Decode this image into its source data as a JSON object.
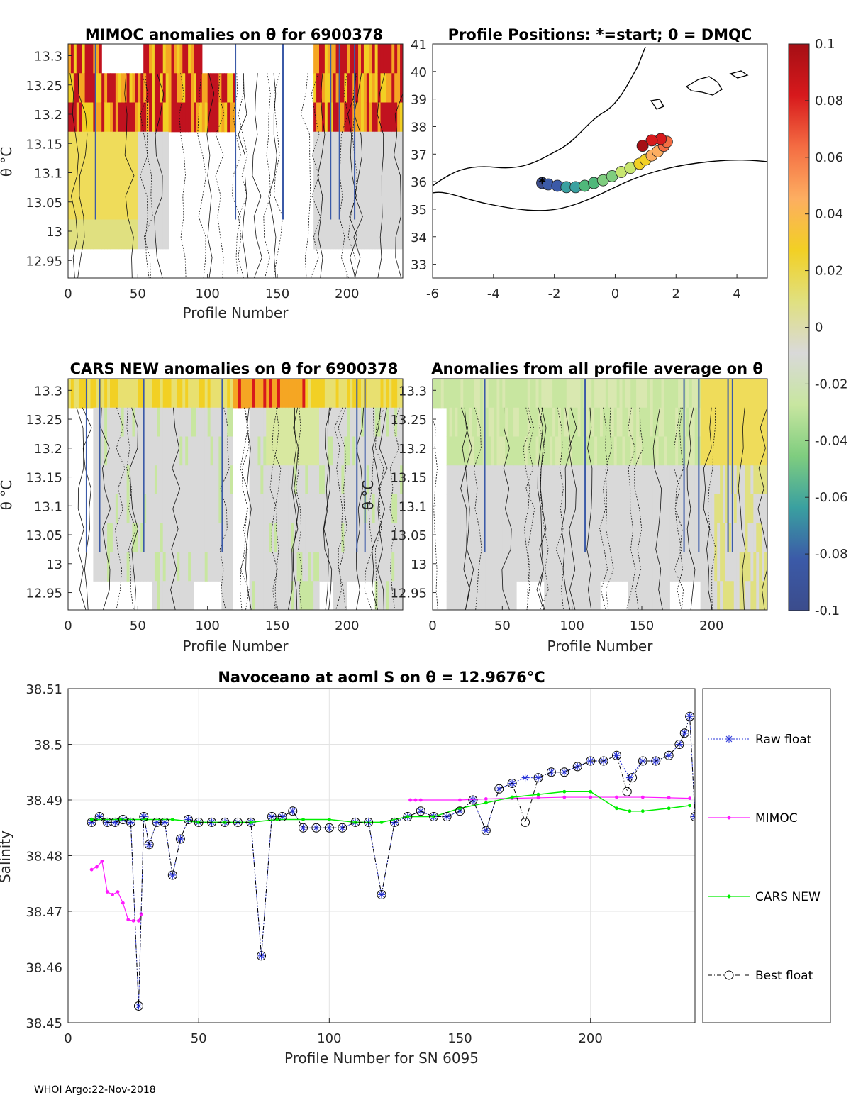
{
  "footer": "WHOI Argo:22-Nov-2018",
  "colorbar": {
    "ticks": [
      "0.1",
      "0.08",
      "0.06",
      "0.04",
      "0.02",
      "0",
      "-0.02",
      "-0.04",
      "-0.06",
      "-0.08",
      "-0.1"
    ],
    "stops": [
      "#a50f15",
      "#d7191c",
      "#f46d43",
      "#fdae61",
      "#f2d024",
      "#e0e080",
      "#d9d9d9",
      "#c8e6a0",
      "#7fcd7f",
      "#3aa0a0",
      "#3b5aa8",
      "#3b4c8c"
    ]
  },
  "chart_data": [
    {
      "id": "mimoc",
      "type": "heatmap",
      "title": "MIMOC anomalies on θ  for 6900378",
      "xlabel": "Profile Number",
      "ylabel": "θ °C",
      "xlim": [
        0,
        240
      ],
      "ylim": [
        12.92,
        13.32
      ],
      "xticks": [
        "0",
        "50",
        "100",
        "150",
        "200"
      ],
      "yticks": [
        "13.3",
        "13.25",
        "13.2",
        "13.15",
        "13.1",
        "13.05",
        "13",
        "12.95"
      ]
    },
    {
      "id": "positions",
      "type": "scatter",
      "title": "Profile Positions: *=start; 0 = DMQC",
      "xlim": [
        -6,
        5
      ],
      "ylim": [
        32.5,
        41
      ],
      "xticks": [
        "-6",
        "-4",
        "-2",
        "0",
        "2",
        "4"
      ],
      "yticks": [
        "41",
        "40",
        "39",
        "38",
        "37",
        "36",
        "35",
        "34",
        "33"
      ],
      "track_lon": [
        -2.4,
        -2.2,
        -1.9,
        -1.6,
        -1.3,
        -1.0,
        -0.7,
        -0.4,
        -0.1,
        0.2,
        0.5,
        0.8,
        1.0,
        1.2,
        1.4,
        1.6,
        1.7,
        1.5,
        1.2,
        0.9
      ],
      "track_lat": [
        35.95,
        35.9,
        35.85,
        35.8,
        35.8,
        35.85,
        35.95,
        36.05,
        36.2,
        36.35,
        36.5,
        36.65,
        36.8,
        36.95,
        37.1,
        37.3,
        37.45,
        37.55,
        37.5,
        37.3
      ]
    },
    {
      "id": "cars",
      "type": "heatmap",
      "title": "CARS NEW anomalies on θ for 6900378",
      "xlabel": "Profile Number",
      "ylabel": "θ °C",
      "xlim": [
        0,
        240
      ],
      "ylim": [
        12.92,
        13.32
      ],
      "xticks": [
        "0",
        "50",
        "100",
        "150",
        "200"
      ],
      "yticks": [
        "13.3",
        "13.25",
        "13.2",
        "13.15",
        "13.1",
        "13.05",
        "13",
        "12.95"
      ]
    },
    {
      "id": "allavg",
      "type": "heatmap",
      "title": "Anomalies from all profile average on θ",
      "xlabel": "Profile Number",
      "ylabel": "θ °C",
      "xlim": [
        0,
        240
      ],
      "ylim": [
        12.92,
        13.32
      ],
      "xticks": [
        "0",
        "50",
        "100",
        "150",
        "200"
      ],
      "yticks": [
        "13.3",
        "13.25",
        "13.2",
        "13.15",
        "13.1",
        "13.05",
        "13",
        "12.95"
      ]
    },
    {
      "id": "salinity",
      "type": "line",
      "title": "Navoceano at aoml S on θ = 12.9676°C",
      "xlabel": "Profile Number for SN 6095",
      "ylabel": "Salinity",
      "xlim": [
        0,
        240
      ],
      "ylim": [
        38.45,
        38.51
      ],
      "xticks": [
        "0",
        "50",
        "100",
        "150",
        "200"
      ],
      "yticks": [
        "38.51",
        "38.5",
        "38.49",
        "38.48",
        "38.47",
        "38.46",
        "38.45"
      ],
      "legend": [
        "Raw float",
        "MIMOC",
        "CARS NEW",
        "Best float"
      ],
      "series": [
        {
          "name": "Raw float",
          "color": "#2a35d8",
          "x": [
            9,
            12,
            15,
            18,
            21,
            24,
            27,
            29,
            31,
            34,
            37,
            40,
            43,
            46,
            50,
            55,
            60,
            65,
            70,
            74,
            78,
            82,
            86,
            90,
            95,
            100,
            105,
            110,
            115,
            120,
            125,
            130,
            135,
            140,
            145,
            150,
            155,
            160,
            165,
            170,
            175,
            180,
            185,
            190,
            195,
            200,
            205,
            210,
            215,
            220,
            225,
            230,
            234,
            236,
            238,
            240
          ],
          "y": [
            38.486,
            38.487,
            38.486,
            38.486,
            38.4865,
            38.486,
            38.453,
            38.487,
            38.482,
            38.486,
            38.486,
            38.4765,
            38.483,
            38.4865,
            38.486,
            38.486,
            38.486,
            38.486,
            38.486,
            38.462,
            38.487,
            38.487,
            38.488,
            38.485,
            38.485,
            38.485,
            38.485,
            38.486,
            38.486,
            38.473,
            38.486,
            38.487,
            38.488,
            38.487,
            38.487,
            38.488,
            38.49,
            38.4845,
            38.492,
            38.493,
            38.494,
            38.494,
            38.495,
            38.495,
            38.496,
            38.497,
            38.497,
            38.498,
            38.494,
            38.497,
            38.497,
            38.498,
            38.5,
            38.502,
            38.505,
            38.487
          ]
        },
        {
          "name": "MIMOC",
          "color": "#ff1aff",
          "x": [
            9,
            11,
            13,
            15,
            17,
            19,
            21,
            23,
            25,
            27,
            28,
            131,
            133,
            135,
            150,
            160,
            170,
            180,
            190,
            200,
            210,
            220,
            230,
            238
          ],
          "y": [
            38.4775,
            38.478,
            38.479,
            38.4735,
            38.473,
            38.4735,
            38.4715,
            38.4685,
            38.4683,
            38.4683,
            38.4695,
            38.49,
            38.49,
            38.49,
            38.49,
            38.4902,
            38.4903,
            38.4904,
            38.4905,
            38.4905,
            38.4905,
            38.4905,
            38.4904,
            38.4903
          ]
        },
        {
          "name": "CARS NEW",
          "color": "#00ee00",
          "x": [
            9,
            20,
            30,
            40,
            50,
            60,
            70,
            80,
            90,
            100,
            110,
            120,
            130,
            140,
            150,
            160,
            170,
            180,
            190,
            200,
            210,
            215,
            220,
            230,
            238
          ],
          "y": [
            38.4865,
            38.4865,
            38.4865,
            38.4865,
            38.486,
            38.486,
            38.486,
            38.4865,
            38.4865,
            38.4865,
            38.486,
            38.486,
            38.487,
            38.487,
            38.4885,
            38.4895,
            38.4905,
            38.491,
            38.4915,
            38.4915,
            38.4885,
            38.488,
            38.488,
            38.4885,
            38.489
          ]
        },
        {
          "name": "Best float",
          "color": "#000000",
          "x": [
            9,
            12,
            15,
            18,
            21,
            24,
            27,
            29,
            31,
            34,
            37,
            40,
            43,
            46,
            50,
            55,
            60,
            65,
            70,
            74,
            78,
            82,
            86,
            90,
            95,
            100,
            105,
            110,
            115,
            120,
            125,
            130,
            135,
            140,
            145,
            150,
            155,
            160,
            165,
            170,
            175,
            180,
            185,
            190,
            195,
            200,
            205,
            210,
            214,
            216,
            220,
            225,
            230,
            234,
            236,
            238,
            240
          ],
          "y": [
            38.486,
            38.487,
            38.486,
            38.486,
            38.4865,
            38.486,
            38.453,
            38.487,
            38.482,
            38.486,
            38.486,
            38.4765,
            38.483,
            38.4865,
            38.486,
            38.486,
            38.486,
            38.486,
            38.486,
            38.462,
            38.487,
            38.487,
            38.488,
            38.485,
            38.485,
            38.485,
            38.485,
            38.486,
            38.486,
            38.473,
            38.486,
            38.487,
            38.488,
            38.487,
            38.487,
            38.488,
            38.49,
            38.4845,
            38.492,
            38.493,
            38.486,
            38.494,
            38.495,
            38.495,
            38.496,
            38.497,
            38.497,
            38.498,
            38.4915,
            38.494,
            38.497,
            38.497,
            38.498,
            38.5,
            38.502,
            38.505,
            38.487
          ]
        }
      ]
    }
  ]
}
